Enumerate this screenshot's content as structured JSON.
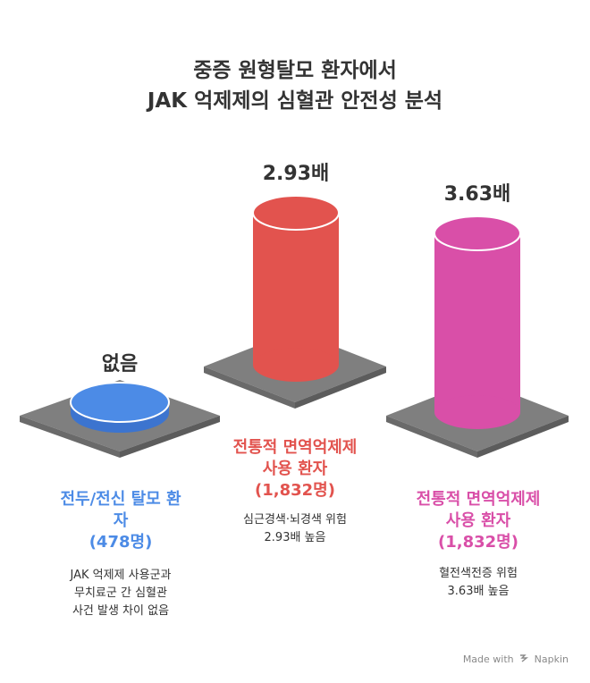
{
  "title": {
    "line1": "중증 원형탈모 환자에서",
    "line2": "JAK 억제제의 심혈관 안전성 분석"
  },
  "groups": [
    {
      "value_label": "없음",
      "name_lines": [
        "전두/전신 탈모 환",
        "자",
        "(478명)"
      ],
      "desc_lines": [
        "JAK 억제제 사용군과",
        "무치료군 간 심혈관",
        "사건 발생 차이 없음"
      ],
      "color": "#4c8be6"
    },
    {
      "value_label": "2.93배",
      "value": 2.93,
      "name_lines": [
        "전통적 면역억제제",
        "사용 환자",
        "(1,832명)"
      ],
      "desc_lines": [
        "심근경색·뇌경색 위험",
        "2.93배 높음"
      ],
      "color": "#e2534e"
    },
    {
      "value_label": "3.63배",
      "value": 3.63,
      "name_lines": [
        "전통적 면역억제제",
        "사용 환자",
        "(1,832명)"
      ],
      "desc_lines": [
        "혈전색전증 위험",
        "3.63배 높음"
      ],
      "color": "#d94fa8"
    }
  ],
  "footer": {
    "made_with": "Made with",
    "brand": "Napkin",
    "icon": "napkin-logo-icon"
  }
}
